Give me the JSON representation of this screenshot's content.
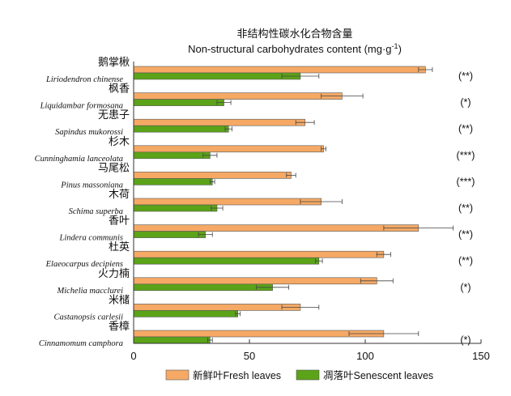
{
  "chart_data": {
    "type": "bar",
    "orientation": "horizontal",
    "title": "非结构性碳水化合物含量",
    "subtitle": "Non-structural carbohydrates content",
    "unit_text": "(mg·g",
    "unit_sup": "-1",
    "unit_close": ")",
    "xlim": [
      0,
      150
    ],
    "xticks": [
      "0",
      "50",
      "100",
      "150"
    ],
    "grid": false,
    "legend_position": "bottom",
    "categories": [
      {
        "cn": "鹅掌楸",
        "latin": "Liriodendron chinense",
        "sig": "(**)"
      },
      {
        "cn": "枫香",
        "latin": "Liquidambar formosana",
        "sig": "(*)"
      },
      {
        "cn": "无患子",
        "latin": "Sapindus mukorossi",
        "sig": "(**)"
      },
      {
        "cn": "杉木",
        "latin": "Cunninghamia lanceolata",
        "sig": "(***)"
      },
      {
        "cn": "马尾松",
        "latin": "Pinus massoniana",
        "sig": "(***)"
      },
      {
        "cn": "木荷",
        "latin": "Schima superba",
        "sig": "(**)"
      },
      {
        "cn": "香叶",
        "latin": "Lindera communis",
        "sig": "(**)"
      },
      {
        "cn": "杜英",
        "latin": "Elaeocarpus decipiens",
        "sig": "(**)"
      },
      {
        "cn": "火力楠",
        "latin": "Michelia macclurei",
        "sig": "(*)"
      },
      {
        "cn": "米槠",
        "latin": "Castanopsis carlesii",
        "sig": ""
      },
      {
        "cn": "香樟",
        "latin": "Cinnamomum camphora",
        "sig": "(*)"
      }
    ],
    "series": [
      {
        "name": "新鲜叶Fresh leaves",
        "color": "#f5a965",
        "values": [
          126,
          90,
          74,
          82,
          68,
          81,
          123,
          108,
          105,
          72,
          108
        ],
        "errors": [
          3,
          9,
          4,
          1,
          2,
          9,
          15,
          3,
          7,
          8,
          15
        ]
      },
      {
        "name": "凋落叶Senescent leaves",
        "color": "#5ba318",
        "values": [
          72,
          39,
          41,
          33,
          34,
          36,
          31,
          80,
          60,
          45,
          33
        ],
        "errors": [
          8,
          3,
          1.5,
          3,
          1,
          2.5,
          3,
          1.5,
          7,
          1,
          1
        ]
      }
    ]
  }
}
